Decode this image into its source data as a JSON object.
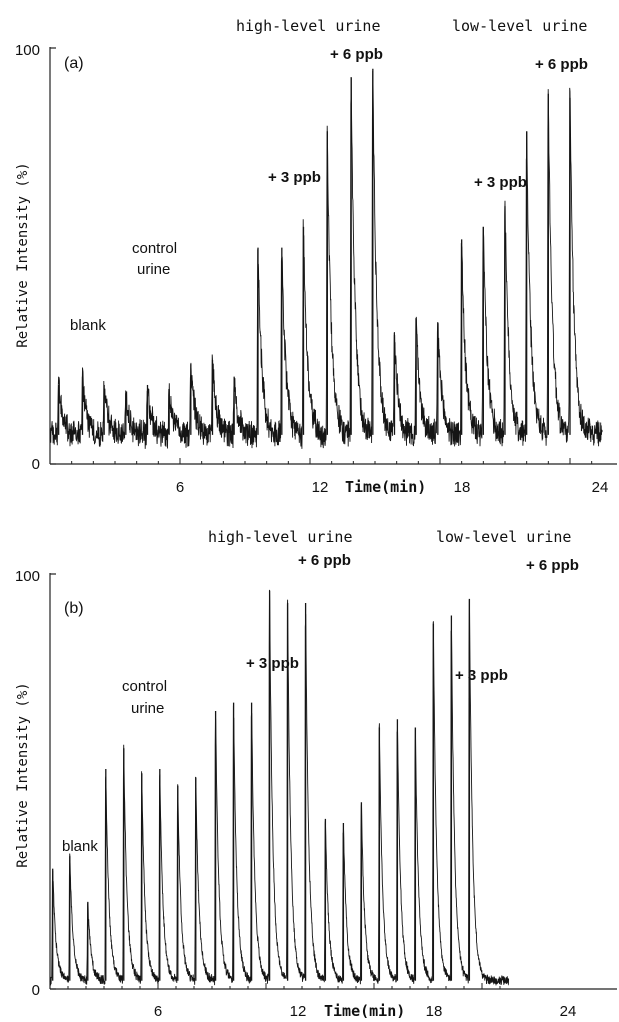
{
  "chart_data": [
    {
      "type": "line",
      "panel_label": "(a)",
      "xlabel": "Time(min)",
      "ylabel": "Relative Intensity (%)",
      "xlim": [
        0,
        25.5
      ],
      "ylim": [
        0,
        100
      ],
      "x_ticks": [
        6,
        12,
        18,
        24
      ],
      "y_ticks": [
        0,
        100
      ],
      "baseline": 7,
      "noise": 3,
      "peaks": [
        {
          "t": 0.4,
          "h": 19
        },
        {
          "t": 1.5,
          "h": 21
        },
        {
          "t": 2.5,
          "h": 19
        },
        {
          "t": 3.5,
          "h": 17
        },
        {
          "t": 4.5,
          "h": 19
        },
        {
          "t": 5.5,
          "h": 18
        },
        {
          "t": 6.5,
          "h": 24
        },
        {
          "t": 7.5,
          "h": 25
        },
        {
          "t": 8.5,
          "h": 21
        },
        {
          "t": 9.6,
          "h": 52
        },
        {
          "t": 10.7,
          "h": 52
        },
        {
          "t": 11.7,
          "h": 57
        },
        {
          "t": 12.8,
          "h": 80
        },
        {
          "t": 13.9,
          "h": 93
        },
        {
          "t": 14.9,
          "h": 95
        },
        {
          "t": 15.9,
          "h": 31
        },
        {
          "t": 16.9,
          "h": 35
        },
        {
          "t": 17.9,
          "h": 34
        },
        {
          "t": 19.0,
          "h": 54
        },
        {
          "t": 20.0,
          "h": 57
        },
        {
          "t": 21.0,
          "h": 62
        },
        {
          "t": 22.0,
          "h": 80
        },
        {
          "t": 23.0,
          "h": 89
        },
        {
          "t": 24.0,
          "h": 88
        }
      ],
      "annotations": {
        "blank": "blank",
        "control_1": "control",
        "control_2": "urine",
        "high": "high-level urine",
        "high_3": "+ 3 ppb",
        "high_6": "+ 6 ppb",
        "low": "low-level urine",
        "low_3": "+ 3 ppb",
        "low_6": "+ 6 ppb"
      }
    },
    {
      "type": "line",
      "panel_label": "(b)",
      "xlabel": "Time(min)",
      "ylabel": "Relative Intensity (%)",
      "xlim": [
        0,
        25.5
      ],
      "ylim": [
        0,
        100
      ],
      "x_ticks": [
        6,
        12,
        18,
        24
      ],
      "y_ticks": [
        0,
        100
      ],
      "baseline": 2,
      "noise": 1,
      "peaks": [
        {
          "t": 0.15,
          "h": 29
        },
        {
          "t": 1.1,
          "h": 32
        },
        {
          "t": 2.1,
          "h": 21
        },
        {
          "t": 3.1,
          "h": 53
        },
        {
          "t": 4.1,
          "h": 58
        },
        {
          "t": 5.1,
          "h": 52
        },
        {
          "t": 6.1,
          "h": 53
        },
        {
          "t": 7.1,
          "h": 49
        },
        {
          "t": 8.1,
          "h": 51
        },
        {
          "t": 9.2,
          "h": 67
        },
        {
          "t": 10.2,
          "h": 69
        },
        {
          "t": 11.2,
          "h": 69
        },
        {
          "t": 12.2,
          "h": 96
        },
        {
          "t": 13.2,
          "h": 93
        },
        {
          "t": 14.2,
          "h": 93
        },
        {
          "t": 15.3,
          "h": 41
        },
        {
          "t": 16.3,
          "h": 40
        },
        {
          "t": 17.3,
          "h": 45
        },
        {
          "t": 18.3,
          "h": 63
        },
        {
          "t": 19.3,
          "h": 65
        },
        {
          "t": 20.3,
          "h": 63
        },
        {
          "t": 21.3,
          "h": 88
        },
        {
          "t": 22.3,
          "h": 90
        },
        {
          "t": 23.3,
          "h": 94
        }
      ],
      "annotations": {
        "blank": "blank",
        "control_1": "control",
        "control_2": "urine",
        "high": "high-level urine",
        "high_3": "+ 3 ppb",
        "high_6": "+ 6 ppb",
        "low": "low-level urine",
        "low_3": "+ 3 ppb",
        "low_6": "+ 6 ppb"
      }
    }
  ]
}
